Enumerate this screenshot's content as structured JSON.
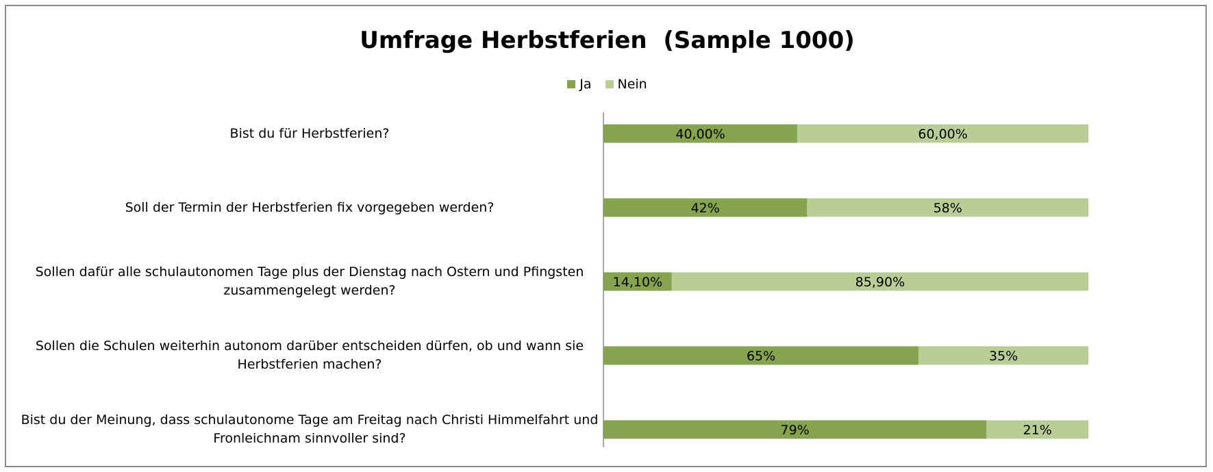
{
  "chart_data": {
    "type": "bar",
    "orientation": "horizontal",
    "stacked": true,
    "title": "Umfrage Herbstferien  (Sample 1000)",
    "legend_position": "top",
    "xlim": [
      0,
      1
    ],
    "grid": false,
    "categories": [
      "Bist du für Herbstferien?",
      "Soll der Termin der Herbstferien fix vorgegeben werden?",
      "Sollen dafür alle schulautonomen Tage plus der Dienstag nach Ostern und Pfingsten zusammengelegt werden?",
      "Sollen die Schulen weiterhin autonom darüber entscheiden dürfen, ob und wann sie Herbstferien machen?",
      "Bist du der Meinung, dass schulautonome Tage am Freitag nach Christi Himmelfahrt und Fronleichnam sinnvoller sind?"
    ],
    "series": [
      {
        "name": "Ja",
        "color": "#86a34d",
        "values": [
          0.4,
          0.42,
          0.141,
          0.65,
          0.79
        ],
        "labels": [
          "40,00%",
          "42%",
          "14,10%",
          "65%",
          "79%"
        ]
      },
      {
        "name": "Nein",
        "color": "#bacd97",
        "values": [
          0.6,
          0.58,
          0.859,
          0.35,
          0.21
        ],
        "labels": [
          "60,00%",
          "58%",
          "85,90%",
          "35%",
          "21%"
        ]
      }
    ]
  }
}
